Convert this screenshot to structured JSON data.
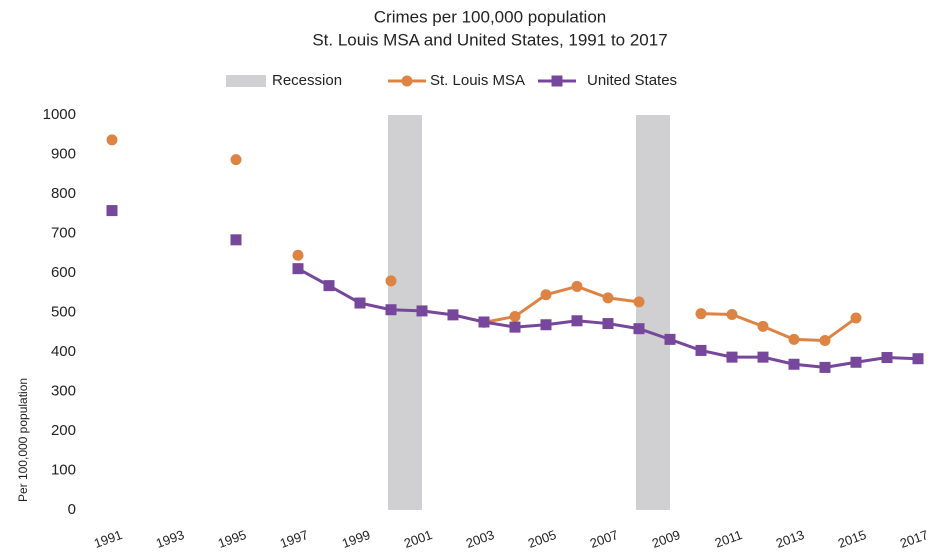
{
  "chart_data": {
    "type": "line",
    "title": "Crimes per 100,000 population",
    "subtitle": "St. Louis MSA and United States, 1991 to 2017",
    "y_label": "Per 100,000 population",
    "x": [
      1991,
      1992,
      1993,
      1994,
      1995,
      1996,
      1997,
      1998,
      1999,
      2000,
      2001,
      2002,
      2003,
      2004,
      2005,
      2006,
      2007,
      2008,
      2009,
      2010,
      2011,
      2012,
      2013,
      2014,
      2015,
      2016,
      2017
    ],
    "xlim": [
      1991,
      2017
    ],
    "xticks": [
      1991,
      1993,
      1995,
      1997,
      1999,
      2001,
      2003,
      2005,
      2007,
      2009,
      2011,
      2013,
      2015,
      2017
    ],
    "ylim": [
      0,
      1000
    ],
    "yticks": [
      0,
      100,
      200,
      300,
      400,
      500,
      600,
      700,
      800,
      900,
      1000
    ],
    "recession": {
      "name": "Recession",
      "color": "#d0d0d2",
      "spans": [
        [
          2000,
          2001
        ],
        [
          2008,
          2009
        ]
      ]
    },
    "series": [
      {
        "name": "St. Louis MSA",
        "color": "#dd8444",
        "marker": "circle",
        "values": [
          937,
          null,
          null,
          null,
          887,
          null,
          645,
          null,
          null,
          580,
          null,
          null,
          475,
          490,
          545,
          566,
          537,
          527,
          null,
          497,
          495,
          465,
          432,
          429,
          486,
          null,
          null
        ]
      },
      {
        "name": "United States",
        "color": "#76479a",
        "marker": "square",
        "values": [
          758,
          null,
          null,
          null,
          684,
          null,
          611,
          568,
          524,
          507,
          504,
          494,
          476,
          463,
          469,
          479,
          472,
          459,
          432,
          404,
          387,
          387,
          369,
          361,
          374,
          386,
          383
        ]
      }
    ],
    "legend": "top"
  }
}
